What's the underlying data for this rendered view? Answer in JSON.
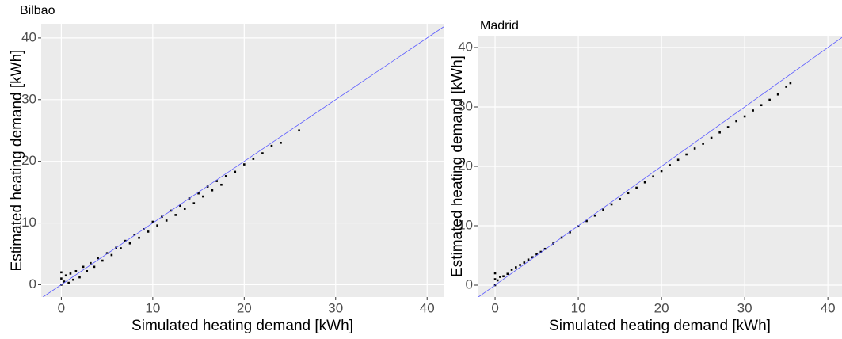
{
  "chart_data": [
    {
      "type": "scatter",
      "title": "Bilbao",
      "x_label": "Simulated heating demand [kWh]",
      "y_label": "Estimated heating demand [kWh]",
      "x": [
        0,
        0,
        0,
        0.3,
        0.5,
        0.8,
        1,
        1.3,
        1.6,
        2,
        2.4,
        2.8,
        3.2,
        3.6,
        4,
        4.5,
        5,
        5.5,
        6,
        6.5,
        7,
        7.5,
        8,
        8.5,
        9,
        9.5,
        10,
        10.5,
        11,
        11.5,
        12,
        12.5,
        13,
        13.5,
        14,
        14.5,
        15,
        15.5,
        16,
        16.5,
        17,
        17.5,
        18,
        19,
        20,
        21,
        22,
        23,
        24,
        26
      ],
      "values": [
        0,
        1,
        2,
        0.5,
        1.5,
        0.3,
        1.8,
        0.8,
        2.2,
        1.2,
        2.9,
        2.2,
        3.5,
        2.9,
        4.3,
        3.9,
        5.1,
        4.8,
        6,
        5.9,
        7.1,
        6.7,
        8.1,
        7.6,
        9,
        8.6,
        10.2,
        9.6,
        11,
        10.4,
        12,
        11.3,
        12.8,
        12.3,
        14,
        13.2,
        14.8,
        14.3,
        15.9,
        15.3,
        16.8,
        16.2,
        17.6,
        18.3,
        19.5,
        20.4,
        21.3,
        22.5,
        23,
        25
      ],
      "color": "#000000",
      "identity_line": true,
      "identity_line_color": "#5b5bff",
      "xlim": [
        -2.2,
        41.8
      ],
      "ylim": [
        -2,
        42.3
      ],
      "xticks": [
        0,
        10,
        20,
        30,
        40
      ],
      "yticks": [
        0,
        10,
        20,
        30,
        40
      ],
      "grid": true,
      "background": "#ebebeb"
    },
    {
      "type": "scatter",
      "title": "Madrid",
      "x_label": "Simulated heating demand [kWh]",
      "y_label": "Estimated heating demand [kWh]",
      "x": [
        0,
        0,
        0,
        0.3,
        0.6,
        1,
        1.5,
        2,
        2.5,
        3,
        3.5,
        4,
        4.5,
        5,
        5.5,
        6,
        7,
        8,
        9,
        10,
        11,
        12,
        13,
        14,
        15,
        16,
        17,
        18,
        19,
        20,
        21,
        22,
        23,
        24,
        25,
        26,
        27,
        28,
        29,
        30,
        31,
        32,
        33,
        34,
        35,
        35.5
      ],
      "values": [
        0,
        1,
        2,
        0.8,
        1.4,
        1.5,
        1.9,
        2.6,
        3,
        3.4,
        3.8,
        4.3,
        4.7,
        5.2,
        5.6,
        6.1,
        7,
        8,
        8.9,
        9.9,
        10.8,
        11.7,
        12.7,
        13.6,
        14.5,
        15.5,
        16.4,
        17.3,
        18.3,
        19.2,
        20.2,
        21.1,
        22,
        23,
        23.8,
        24.8,
        25.7,
        26.6,
        27.6,
        28.4,
        29.4,
        30.3,
        31.2,
        32.1,
        33.4,
        34
      ],
      "color": "#000000",
      "identity_line": true,
      "identity_line_color": "#5b5bff",
      "xlim": [
        -2.1,
        41.7
      ],
      "ylim": [
        -2,
        42
      ],
      "xticks": [
        0,
        10,
        20,
        30,
        40
      ],
      "yticks": [
        0,
        10,
        20,
        30,
        40
      ],
      "grid": true,
      "background": "#ebebeb"
    }
  ]
}
